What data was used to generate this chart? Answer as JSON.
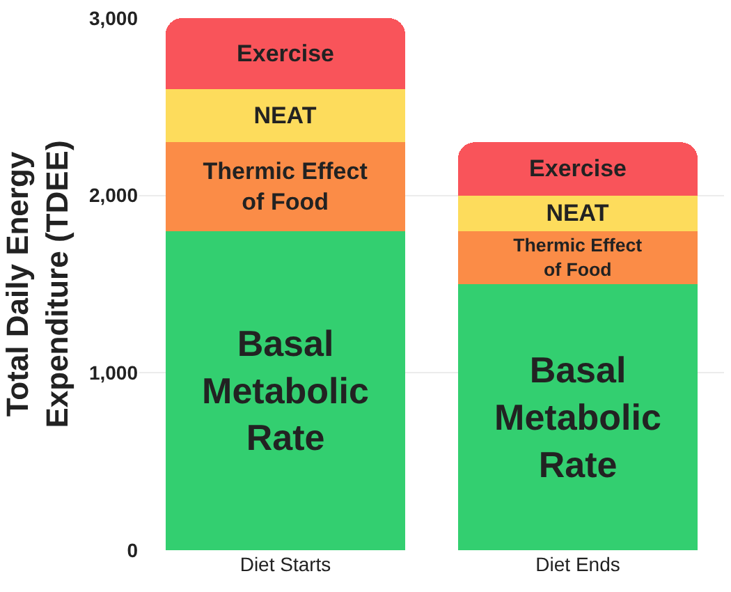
{
  "chart_data": {
    "type": "bar",
    "stacked": true,
    "ylabel": "Total Daily Energy Expenditure (TDEE)",
    "categories": [
      "Diet Starts",
      "Diet Ends"
    ],
    "series": [
      {
        "name": "Basal Metabolic Rate",
        "color": "#33cf70",
        "values": [
          1800,
          1500
        ]
      },
      {
        "name": "Thermic Effect of Food",
        "color": "#fb8c47",
        "values": [
          500,
          300
        ]
      },
      {
        "name": "NEAT",
        "color": "#fddc5c",
        "values": [
          300,
          200
        ]
      },
      {
        "name": "Exercise",
        "color": "#f9545a",
        "values": [
          400,
          300
        ]
      }
    ],
    "ylim": [
      0,
      3000
    ],
    "yticks": [
      {
        "value": 0,
        "label": "0"
      },
      {
        "value": 1000,
        "label": "1,000"
      },
      {
        "value": 2000,
        "label": "2,000"
      },
      {
        "value": 3000,
        "label": "3,000"
      }
    ],
    "grid": "y",
    "legend": false
  }
}
